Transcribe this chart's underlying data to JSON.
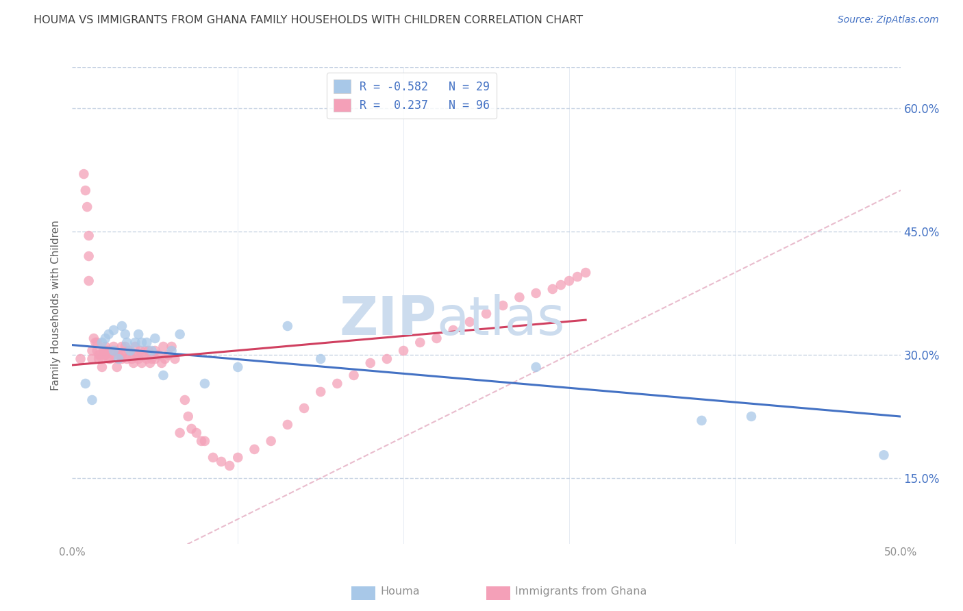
{
  "title": "HOUMA VS IMMIGRANTS FROM GHANA FAMILY HOUSEHOLDS WITH CHILDREN CORRELATION CHART",
  "source": "Source: ZipAtlas.com",
  "ylabel": "Family Households with Children",
  "xlabel_houma": "Houma",
  "xlabel_ghana": "Immigrants from Ghana",
  "xlim": [
    0.0,
    0.5
  ],
  "ylim": [
    0.07,
    0.65
  ],
  "xticks": [
    0.0,
    0.1,
    0.2,
    0.3,
    0.4,
    0.5
  ],
  "xtick_labels": [
    "0.0%",
    "",
    "",
    "",
    "",
    "50.0%"
  ],
  "yticks": [
    0.15,
    0.3,
    0.45,
    0.6
  ],
  "ytick_labels": [
    "15.0%",
    "30.0%",
    "45.0%",
    "60.0%"
  ],
  "houma_R": -0.582,
  "houma_N": 29,
  "ghana_R": 0.237,
  "ghana_N": 96,
  "houma_color": "#a8c8e8",
  "ghana_color": "#f4a0b8",
  "houma_line_color": "#4472c4",
  "ghana_line_color": "#d04060",
  "ghana_diag_color": "#e0a0b8",
  "watermark_zip": "ZIP",
  "watermark_atlas": "atlas",
  "watermark_color": "#ccdcee",
  "background_color": "#ffffff",
  "grid_color": "#c8d4e4",
  "title_color": "#404040",
  "axis_label_color": "#606060",
  "tick_color": "#909090",
  "right_tick_color": "#4472c4",
  "legend_R_color": "#4472c4",
  "houma_x": [
    0.008,
    0.012,
    0.018,
    0.02,
    0.022,
    0.025,
    0.025,
    0.028,
    0.03,
    0.032,
    0.033,
    0.035,
    0.038,
    0.04,
    0.042,
    0.045,
    0.048,
    0.05,
    0.055,
    0.06,
    0.065,
    0.08,
    0.1,
    0.13,
    0.15,
    0.28,
    0.38,
    0.41,
    0.49
  ],
  "houma_y": [
    0.265,
    0.245,
    0.315,
    0.32,
    0.325,
    0.33,
    0.305,
    0.295,
    0.335,
    0.325,
    0.315,
    0.305,
    0.315,
    0.325,
    0.315,
    0.315,
    0.305,
    0.32,
    0.275,
    0.305,
    0.325,
    0.265,
    0.285,
    0.335,
    0.295,
    0.285,
    0.22,
    0.225,
    0.178
  ],
  "ghana_x": [
    0.005,
    0.007,
    0.008,
    0.009,
    0.01,
    0.01,
    0.01,
    0.012,
    0.012,
    0.013,
    0.014,
    0.015,
    0.015,
    0.016,
    0.016,
    0.017,
    0.018,
    0.018,
    0.019,
    0.02,
    0.02,
    0.02,
    0.021,
    0.022,
    0.023,
    0.024,
    0.025,
    0.025,
    0.026,
    0.027,
    0.028,
    0.029,
    0.03,
    0.03,
    0.03,
    0.032,
    0.033,
    0.034,
    0.035,
    0.036,
    0.037,
    0.038,
    0.039,
    0.04,
    0.04,
    0.041,
    0.042,
    0.043,
    0.044,
    0.045,
    0.046,
    0.047,
    0.048,
    0.05,
    0.05,
    0.052,
    0.054,
    0.055,
    0.056,
    0.058,
    0.06,
    0.062,
    0.065,
    0.068,
    0.07,
    0.072,
    0.075,
    0.078,
    0.08,
    0.085,
    0.09,
    0.095,
    0.1,
    0.11,
    0.12,
    0.13,
    0.14,
    0.15,
    0.16,
    0.17,
    0.18,
    0.19,
    0.2,
    0.21,
    0.22,
    0.23,
    0.24,
    0.25,
    0.26,
    0.27,
    0.28,
    0.29,
    0.295,
    0.3,
    0.305,
    0.31
  ],
  "ghana_y": [
    0.295,
    0.52,
    0.5,
    0.48,
    0.445,
    0.42,
    0.39,
    0.305,
    0.295,
    0.32,
    0.315,
    0.305,
    0.315,
    0.3,
    0.295,
    0.3,
    0.295,
    0.285,
    0.305,
    0.31,
    0.3,
    0.3,
    0.305,
    0.295,
    0.295,
    0.305,
    0.31,
    0.3,
    0.305,
    0.285,
    0.3,
    0.3,
    0.31,
    0.3,
    0.295,
    0.31,
    0.295,
    0.305,
    0.3,
    0.295,
    0.29,
    0.31,
    0.3,
    0.3,
    0.295,
    0.305,
    0.29,
    0.3,
    0.305,
    0.295,
    0.305,
    0.29,
    0.295,
    0.305,
    0.295,
    0.3,
    0.29,
    0.31,
    0.295,
    0.3,
    0.31,
    0.295,
    0.205,
    0.245,
    0.225,
    0.21,
    0.205,
    0.195,
    0.195,
    0.175,
    0.17,
    0.165,
    0.175,
    0.185,
    0.195,
    0.215,
    0.235,
    0.255,
    0.265,
    0.275,
    0.29,
    0.295,
    0.305,
    0.315,
    0.32,
    0.33,
    0.34,
    0.35,
    0.36,
    0.37,
    0.375,
    0.38,
    0.385,
    0.39,
    0.395,
    0.4
  ]
}
